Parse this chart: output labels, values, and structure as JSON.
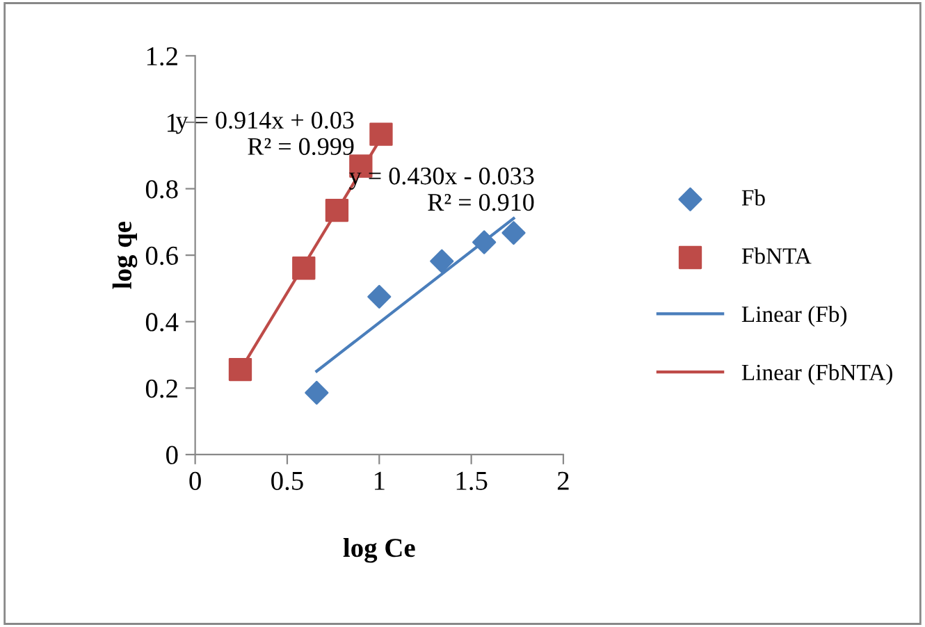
{
  "chart_data": {
    "type": "scatter",
    "xlabel": "log Ce",
    "ylabel": "log qe",
    "xlim": [
      0,
      2
    ],
    "xticks": [
      0,
      0.5,
      1,
      1.5,
      2
    ],
    "ylim": [
      0,
      1.2
    ],
    "yticks": [
      0,
      0.2,
      0.4,
      0.6,
      0.8,
      1,
      1.2
    ],
    "grid": false,
    "legend": "right",
    "series": [
      {
        "name": "Fb",
        "marker": "diamond",
        "color": "#4a7ebb",
        "x": [
          0.66,
          1.0,
          1.34,
          1.57,
          1.73
        ],
        "values": [
          0.186,
          0.475,
          0.582,
          0.639,
          0.667
        ]
      },
      {
        "name": "FbNTA",
        "marker": "square",
        "color": "#be4b48",
        "x": [
          0.245,
          0.59,
          0.77,
          0.9,
          1.01
        ],
        "values": [
          0.256,
          0.561,
          0.735,
          0.868,
          0.964
        ]
      },
      {
        "name": "Linear (Fb)",
        "type": "line",
        "marker": "none",
        "line_style": "solid",
        "color": "#4a7ebb",
        "x": [
          0.66,
          1.73
        ],
        "values": [
          0.251,
          0.711
        ]
      },
      {
        "name": "Linear (FbNTA)",
        "type": "line",
        "marker": "none",
        "line_style": "solid",
        "color": "#be4b48",
        "x": [
          0.245,
          1.01
        ],
        "values": [
          0.254,
          0.953
        ]
      }
    ],
    "annotations": [
      "y = 0.914x + 0.03\nR² = 0.999",
      "y = 0.430x - 0.033\nR² = 0.910"
    ]
  }
}
